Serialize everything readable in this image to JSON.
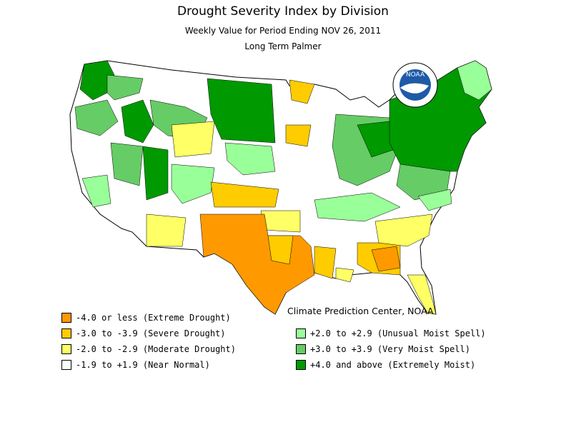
{
  "title": "Drought Severity Index by Division",
  "subtitle": "Weekly Value for Period Ending NOV 26, 2011",
  "index_name": "Long Term Palmer",
  "credit": "Climate Prediction Center, NOAA",
  "logo_text": "NOAA",
  "colors": {
    "extreme_drought": "#ff9900",
    "severe_drought": "#ffcc00",
    "moderate_drought": "#ffff66",
    "near_normal": "#ffffff",
    "unusual_moist": "#99ff99",
    "very_moist": "#66cc66",
    "extremely_moist": "#009900"
  },
  "legend": {
    "left": [
      {
        "label": "-4.0 or less (Extreme Drought)",
        "color": "#ff9900"
      },
      {
        "label": "-3.0 to -3.9 (Severe Drought)",
        "color": "#ffcc00"
      },
      {
        "label": "-2.0 to -2.9 (Moderate Drought)",
        "color": "#ffff66"
      },
      {
        "label": "-1.9 to +1.9 (Near Normal)",
        "color": "#ffffff"
      }
    ],
    "right": [
      {
        "label": "+2.0 to +2.9 (Unusual Moist Spell)",
        "color": "#99ff99"
      },
      {
        "label": "+3.0 to +3.9 (Very Moist Spell)",
        "color": "#66cc66"
      },
      {
        "label": "+4.0 and above (Extremely Moist)",
        "color": "#009900"
      }
    ]
  }
}
